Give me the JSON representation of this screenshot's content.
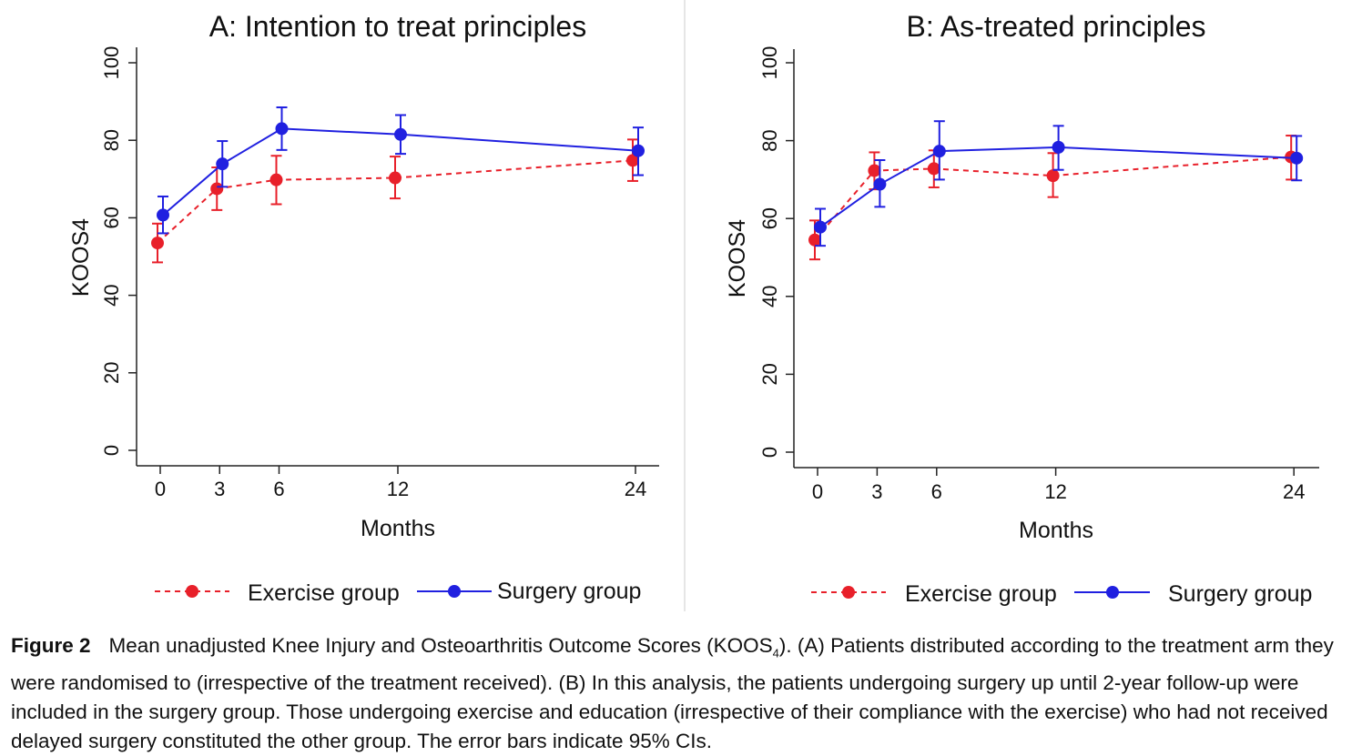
{
  "chart_data": [
    {
      "type": "line",
      "title": "A: Intention to treat principles",
      "xlabel": "Months",
      "ylabel": "KOOS4",
      "x": [
        0,
        3,
        6,
        12,
        24
      ],
      "xticks": [
        "0",
        "3",
        "6",
        "12",
        "24"
      ],
      "yticks": [
        "0",
        "20",
        "40",
        "60",
        "80",
        "100"
      ],
      "ylim": [
        0,
        100
      ],
      "series": [
        {
          "name": "Exercise group",
          "color": "#e8202a",
          "line_style": "dashed",
          "values": [
            53.5,
            67.5,
            69.8,
            70.3,
            74.8
          ],
          "ci_low": [
            48.5,
            62,
            63.5,
            65,
            69.5
          ],
          "ci_high": [
            58.5,
            73,
            76,
            75.8,
            80.2
          ]
        },
        {
          "name": "Surgery group",
          "color": "#2020e0",
          "line_style": "solid",
          "values": [
            60.7,
            73.9,
            83,
            81.5,
            77.3
          ],
          "ci_low": [
            56,
            68,
            77.5,
            76.5,
            71
          ],
          "ci_high": [
            65.5,
            79.8,
            88.5,
            86.5,
            83.3
          ]
        }
      ]
    },
    {
      "type": "line",
      "title": "B: As-treated principles",
      "xlabel": "Months",
      "ylabel": "KOOS4",
      "x": [
        0,
        3,
        6,
        12,
        24
      ],
      "xticks": [
        "0",
        "3",
        "6",
        "12",
        "24"
      ],
      "yticks": [
        "0",
        "20",
        "40",
        "60",
        "80",
        "100"
      ],
      "ylim": [
        0,
        100
      ],
      "series": [
        {
          "name": "Exercise group",
          "color": "#e8202a",
          "line_style": "dashed",
          "values": [
            54.5,
            72.3,
            72.8,
            71,
            75.8
          ],
          "ci_low": [
            49.5,
            67.5,
            68,
            65.5,
            70
          ],
          "ci_high": [
            59.5,
            77,
            77.5,
            76.8,
            81.3
          ]
        },
        {
          "name": "Surgery group",
          "color": "#2020e0",
          "line_style": "solid",
          "values": [
            57.8,
            68.8,
            77.3,
            78.3,
            75.5
          ],
          "ci_low": [
            53,
            63,
            70,
            72.5,
            69.8
          ],
          "ci_high": [
            62.5,
            75,
            85,
            83.8,
            81.2
          ]
        }
      ]
    }
  ],
  "caption": {
    "label": "Figure 2",
    "text_before_sub": "Mean unadjusted Knee Injury and Osteoarthritis Outcome Scores (KOOS",
    "sub": "4",
    "text_after_sub": "). (A) Patients distributed according to the treatment arm they were randomised to (irrespective of the treatment received). (B) In this analysis, the patients undergoing surgery up until 2-year follow-up were included in the surgery group. Those undergoing exercise and education (irrespective of their compliance with the exercise) who had not received delayed surgery constituted the other group. The error bars indicate 95% CIs."
  }
}
